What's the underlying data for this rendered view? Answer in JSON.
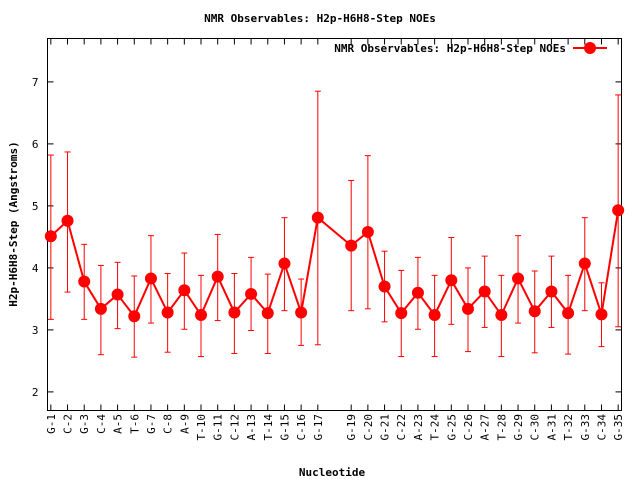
{
  "chart_data": {
    "type": "line",
    "title": "NMR Observables: H2p-H6H8-Step NOEs",
    "xlabel": "Nucleotide",
    "ylabel": "H2p-H6H8-Step (Angstroms)",
    "ylim": [
      1.7,
      7.7
    ],
    "yticks": [
      "2",
      "3",
      "4",
      "5",
      "6",
      "7"
    ],
    "grid": false,
    "legend": {
      "position": "top-right",
      "label": "NMR Observables: H2p-H6H8-Step NOEs"
    },
    "color": "#ff0000",
    "x": [
      1,
      2,
      3,
      4,
      5,
      6,
      7,
      8,
      9,
      10,
      11,
      12,
      13,
      14,
      15,
      16,
      17,
      19,
      20,
      21,
      22,
      23,
      24,
      25,
      26,
      27,
      28,
      29,
      30,
      31,
      32,
      33,
      34,
      35
    ],
    "categories": [
      "G-1",
      "C-2",
      "G-3",
      "C-4",
      "A-5",
      "T-6",
      "G-7",
      "C-8",
      "A-9",
      "T-10",
      "G-11",
      "C-12",
      "A-13",
      "T-14",
      "G-15",
      "C-16",
      "G-17",
      "G-19",
      "C-20",
      "G-21",
      "C-22",
      "A-23",
      "T-24",
      "G-25",
      "C-26",
      "A-27",
      "T-28",
      "G-29",
      "C-30",
      "A-31",
      "T-32",
      "G-33",
      "C-34",
      "G-35"
    ],
    "values": [
      4.51,
      4.76,
      3.78,
      3.34,
      3.57,
      3.22,
      3.83,
      3.28,
      3.64,
      3.24,
      3.86,
      3.28,
      3.58,
      3.27,
      4.07,
      3.28,
      4.81,
      4.36,
      4.58,
      3.7,
      3.27,
      3.6,
      3.24,
      3.8,
      3.34,
      3.62,
      3.24,
      3.83,
      3.3,
      3.62,
      3.27,
      4.07,
      3.25,
      4.93
    ],
    "err_high": [
      5.82,
      5.87,
      4.38,
      4.04,
      4.09,
      3.87,
      4.52,
      3.91,
      4.24,
      3.88,
      4.54,
      3.91,
      4.17,
      3.9,
      4.81,
      3.82,
      6.85,
      5.41,
      5.81,
      4.27,
      3.96,
      4.17,
      3.88,
      4.49,
      4.0,
      4.19,
      3.88,
      4.52,
      3.95,
      4.19,
      3.88,
      4.81,
      3.76,
      6.79
    ],
    "err_low": [
      3.17,
      3.61,
      3.17,
      2.6,
      3.02,
      2.56,
      3.11,
      2.64,
      3.01,
      2.57,
      3.15,
      2.62,
      2.99,
      2.62,
      3.31,
      2.75,
      2.76,
      3.31,
      3.34,
      3.13,
      2.57,
      3.01,
      2.57,
      3.09,
      2.65,
      3.04,
      2.57,
      3.11,
      2.63,
      3.04,
      2.61,
      3.31,
      2.73,
      3.05
    ]
  }
}
